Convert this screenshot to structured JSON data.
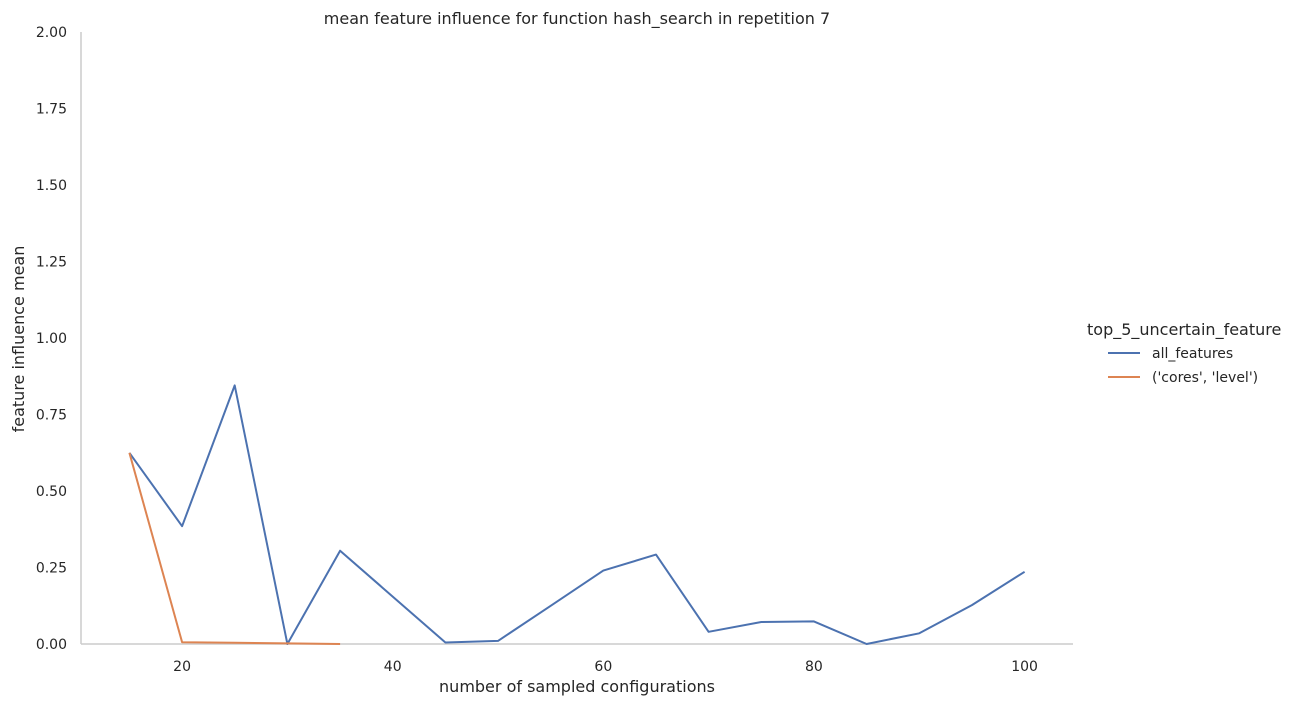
{
  "chart_data": {
    "type": "line",
    "title": "mean feature influence for function hash_search in repetition 7",
    "xlabel": "number of sampled configurations",
    "ylabel": "feature influence mean",
    "xlim": [
      10.4,
      104.6
    ],
    "ylim": [
      0,
      2
    ],
    "x_ticks": [
      20,
      40,
      60,
      80,
      100
    ],
    "x_tick_labels": [
      "20",
      "40",
      "60",
      "80",
      "100"
    ],
    "y_ticks": [
      0,
      0.25,
      0.5,
      0.75,
      1.0,
      1.25,
      1.5,
      1.75,
      2.0
    ],
    "y_tick_labels": [
      "0.00",
      "0.25",
      "0.50",
      "0.75",
      "1.00",
      "1.25",
      "1.50",
      "1.75",
      "2.00"
    ],
    "grid": false,
    "legend": {
      "title": "top_5_uncertain_feature",
      "placement": "right"
    },
    "series": [
      {
        "name": "all_features",
        "color": "#4c72b0",
        "x": [
          15,
          20,
          25,
          30,
          35,
          40,
          45,
          50,
          55,
          60,
          65,
          70,
          75,
          80,
          85,
          90,
          95,
          100
        ],
        "y": [
          0.625,
          0.385,
          0.845,
          0.0,
          0.305,
          0.155,
          0.005,
          0.01,
          0.125,
          0.24,
          0.292,
          0.04,
          0.072,
          0.074,
          0.0,
          0.035,
          0.127,
          0.236
        ]
      },
      {
        "name": "('cores', 'level')",
        "color": "#dd8452",
        "x": [
          15,
          20,
          25,
          30,
          35
        ],
        "y": [
          0.625,
          0.006,
          0.004,
          0.002,
          0.0
        ]
      }
    ]
  }
}
